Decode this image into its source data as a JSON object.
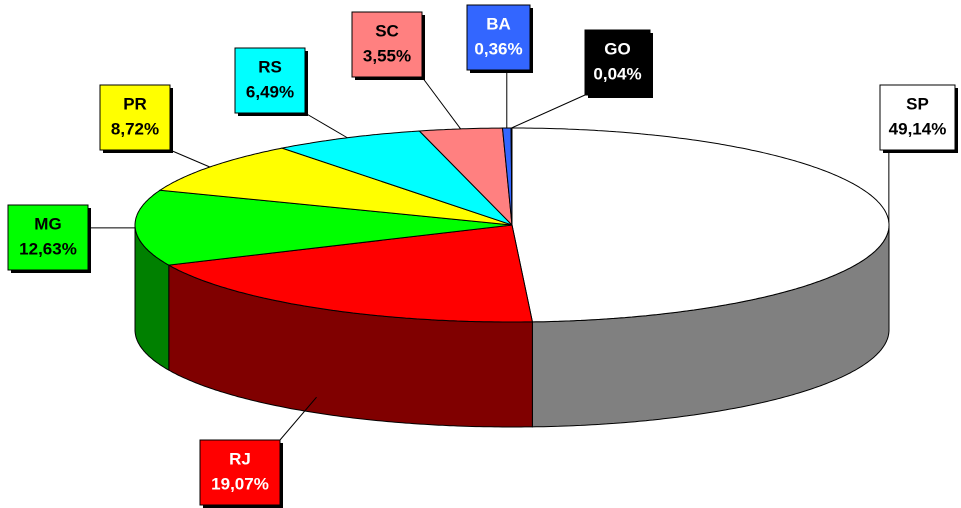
{
  "chart_data": {
    "type": "pie3d",
    "categories": [
      "SP",
      "RJ",
      "MG",
      "PR",
      "RS",
      "SC",
      "BA",
      "GO"
    ],
    "values": [
      49.14,
      19.07,
      12.63,
      8.72,
      6.49,
      3.55,
      0.36,
      0.04
    ],
    "value_labels": [
      "49,14%",
      "19,07%",
      "12,63%",
      "8,72%",
      "6,49%",
      "3,55%",
      "0,36%",
      "0,04%"
    ],
    "colors": [
      "#ffffff",
      "#ff0000",
      "#00ff00",
      "#ffff00",
      "#00ffff",
      "#ff8080",
      "#3366ff",
      "#000000"
    ]
  }
}
